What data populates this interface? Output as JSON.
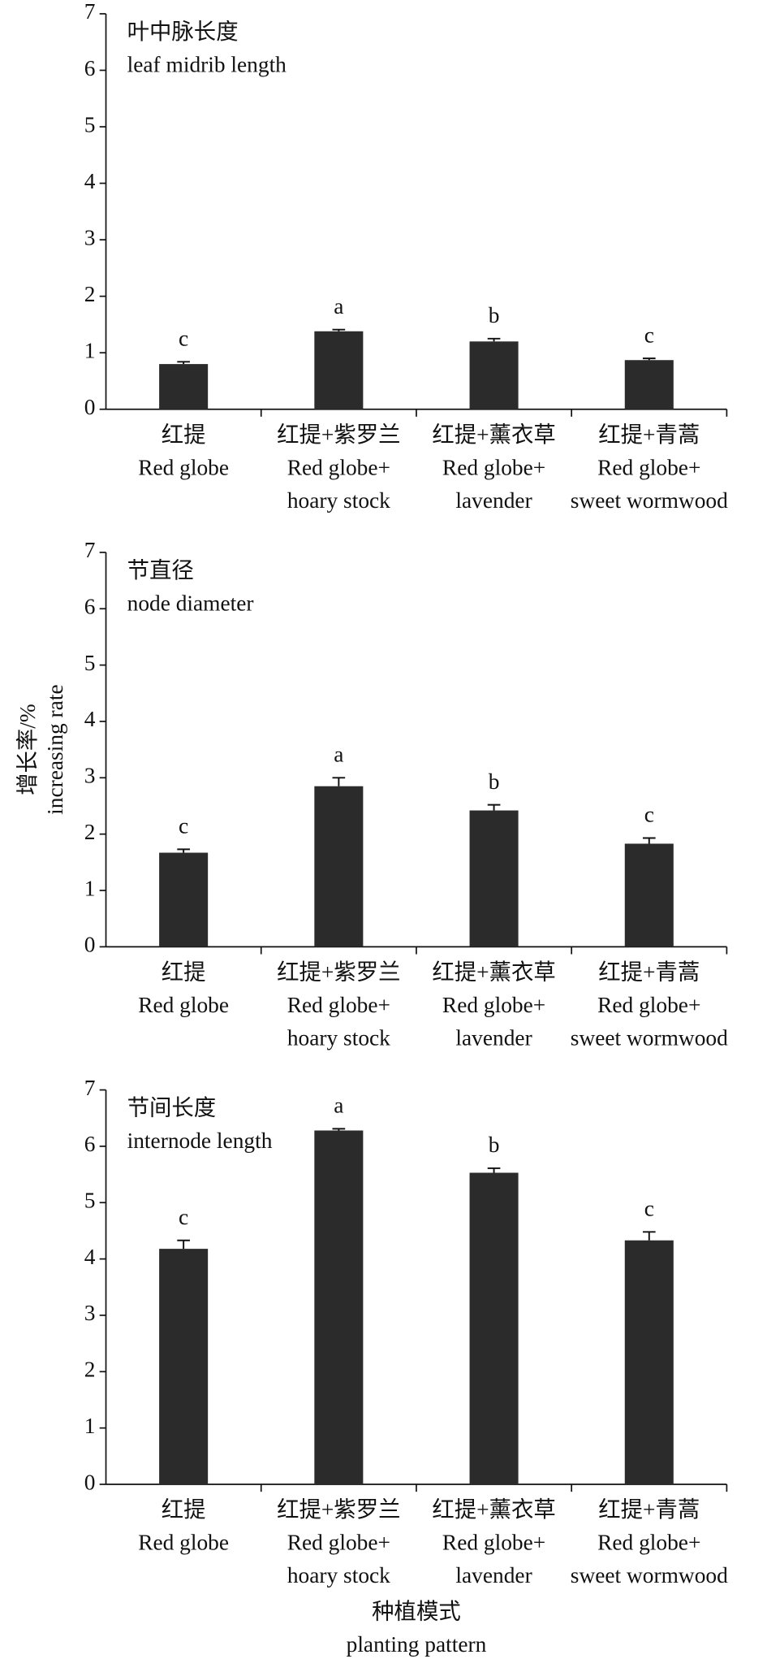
{
  "chart_data": [
    {
      "type": "bar",
      "title": [
        "叶中脉长度",
        "leaf midrib length"
      ],
      "categories": [
        [
          "红提",
          "Red globe"
        ],
        [
          "红提+紫罗兰",
          "Red globe+",
          "hoary stock"
        ],
        [
          "红提+薰衣草",
          "Red globe+",
          "lavender"
        ],
        [
          "红提+青蒿",
          "Red globe+",
          "sweet wormwood"
        ]
      ],
      "values": [
        0.8,
        1.38,
        1.2,
        0.87
      ],
      "errors": [
        0.04,
        0.03,
        0.05,
        0.03
      ],
      "letters": [
        "c",
        "a",
        "b",
        "c"
      ],
      "color": "#2b2b2b",
      "ylim": [
        0,
        7
      ],
      "yticks": [
        0,
        1,
        2,
        3,
        4,
        5,
        6,
        7
      ]
    },
    {
      "type": "bar",
      "title": [
        "节直径",
        "node diameter"
      ],
      "categories": [
        [
          "红提",
          "Red globe"
        ],
        [
          "红提+紫罗兰",
          "Red globe+",
          "hoary stock"
        ],
        [
          "红提+薰衣草",
          "Red globe+",
          "lavender"
        ],
        [
          "红提+青蒿",
          "Red globe+",
          "sweet wormwood"
        ]
      ],
      "values": [
        1.67,
        2.85,
        2.42,
        1.83
      ],
      "errors": [
        0.06,
        0.15,
        0.1,
        0.1
      ],
      "letters": [
        "c",
        "a",
        "b",
        "c"
      ],
      "color": "#2b2b2b",
      "ylim": [
        0,
        7
      ],
      "yticks": [
        0,
        1,
        2,
        3,
        4,
        5,
        6,
        7
      ]
    },
    {
      "type": "bar",
      "title": [
        "节间长度",
        "internode length"
      ],
      "categories": [
        [
          "红提",
          "Red globe"
        ],
        [
          "红提+紫罗兰",
          "Red globe+",
          "hoary stock"
        ],
        [
          "红提+薰衣草",
          "Red globe+",
          "lavender"
        ],
        [
          "红提+青蒿",
          "Red globe+",
          "sweet wormwood"
        ]
      ],
      "values": [
        4.18,
        6.28,
        5.53,
        4.33
      ],
      "errors": [
        0.15,
        0.03,
        0.08,
        0.15
      ],
      "letters": [
        "c",
        "a",
        "b",
        "c"
      ],
      "color": "#2b2b2b",
      "ylim": [
        0,
        7
      ],
      "yticks": [
        0,
        1,
        2,
        3,
        4,
        5,
        6,
        7
      ]
    }
  ],
  "ylabel": [
    "增长率/%",
    "increasing rate"
  ],
  "xlabel": [
    "种植模式",
    "planting pattern"
  ]
}
